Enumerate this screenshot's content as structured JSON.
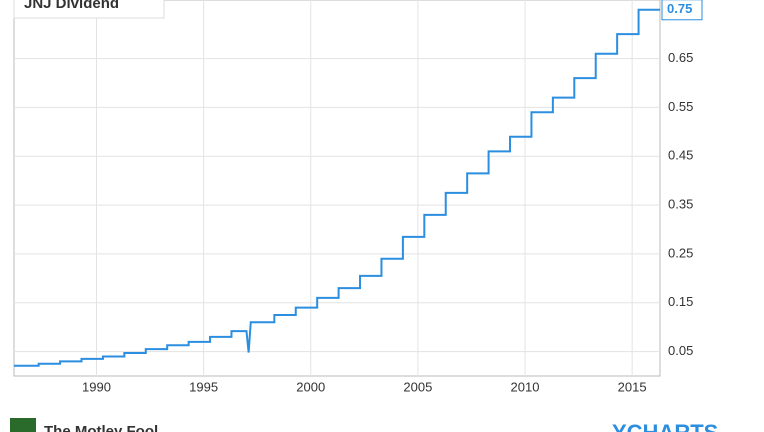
{
  "chart_data": {
    "type": "line",
    "title": "JNJ Dividend",
    "x": [
      1986.15,
      1987.3,
      1987.3,
      1988.3,
      1988.3,
      1989.3,
      1989.3,
      1990.3,
      1990.3,
      1991.3,
      1991.3,
      1992.3,
      1992.3,
      1993.3,
      1993.3,
      1994.3,
      1994.3,
      1995.3,
      1995.3,
      1996.3,
      1996.3,
      1997.0,
      1997.1,
      1997.2,
      1998.3,
      1998.3,
      1999.3,
      1999.3,
      2000.3,
      2000.3,
      2001.3,
      2001.3,
      2002.3,
      2002.3,
      2003.3,
      2003.3,
      2004.3,
      2004.3,
      2005.3,
      2005.3,
      2006.3,
      2006.3,
      2007.3,
      2007.3,
      2008.3,
      2008.3,
      2009.3,
      2009.3,
      2010.3,
      2010.3,
      2011.3,
      2011.3,
      2012.3,
      2012.3,
      2013.3,
      2013.3,
      2014.3,
      2014.3,
      2015.3,
      2015.3,
      2016.3
    ],
    "series": [
      {
        "name": "JNJ Dividend",
        "color": "#2b8ee0",
        "values": [
          0.021,
          0.021,
          0.025,
          0.025,
          0.03,
          0.03,
          0.035,
          0.035,
          0.04,
          0.04,
          0.047,
          0.047,
          0.055,
          0.055,
          0.063,
          0.063,
          0.07,
          0.07,
          0.08,
          0.08,
          0.092,
          0.092,
          0.048,
          0.11,
          0.11,
          0.125,
          0.125,
          0.14,
          0.14,
          0.16,
          0.16,
          0.18,
          0.18,
          0.205,
          0.205,
          0.24,
          0.24,
          0.285,
          0.285,
          0.33,
          0.33,
          0.375,
          0.375,
          0.415,
          0.415,
          0.46,
          0.46,
          0.49,
          0.49,
          0.54,
          0.54,
          0.57,
          0.57,
          0.61,
          0.61,
          0.66,
          0.66,
          0.7,
          0.7,
          0.75,
          0.75
        ]
      }
    ],
    "xlim": [
      1986.15,
      2016.3
    ],
    "xticks": [
      1990,
      1995,
      2000,
      2005,
      2010,
      2015
    ],
    "ylim": [
      0,
      0.77
    ],
    "yticks": [
      0.05,
      0.15,
      0.25,
      0.35,
      0.45,
      0.55,
      0.65
    ],
    "grid": true
  },
  "footer": {
    "source": "The Motley Fool",
    "brand": "YCHARTS"
  }
}
